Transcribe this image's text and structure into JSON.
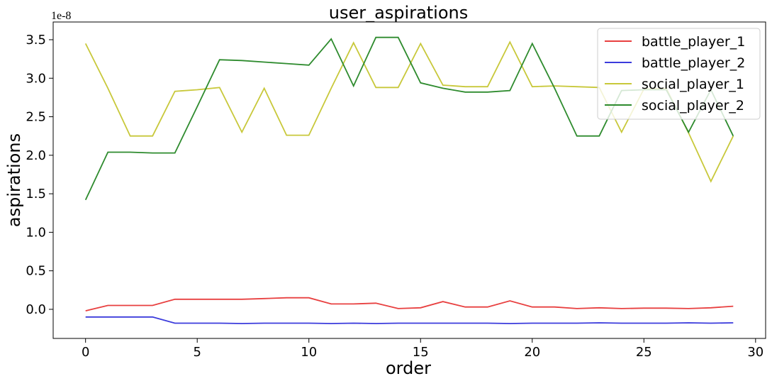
{
  "chart_data": {
    "type": "line",
    "title": "user_aspirations",
    "x_label": "order",
    "y_label": "aspirations",
    "y_offset_text": "1e-8",
    "x": [
      0,
      1,
      2,
      3,
      4,
      5,
      6,
      7,
      8,
      9,
      10,
      11,
      12,
      13,
      14,
      15,
      16,
      17,
      18,
      19,
      20,
      21,
      22,
      23,
      24,
      25,
      26,
      27,
      28,
      29
    ],
    "series": [
      {
        "name": "battle_player_1",
        "color": "#e84040",
        "values": [
          -0.02,
          0.05,
          0.05,
          0.05,
          0.13,
          0.13,
          0.13,
          0.13,
          0.14,
          0.15,
          0.15,
          0.07,
          0.07,
          0.08,
          0.01,
          0.02,
          0.1,
          0.03,
          0.03,
          0.11,
          0.03,
          0.03,
          0.01,
          0.02,
          0.01,
          0.015,
          0.015,
          0.01,
          0.02,
          0.04
        ]
      },
      {
        "name": "battle_player_2",
        "color": "#3b3bdc",
        "values": [
          -0.1,
          -0.1,
          -0.1,
          -0.1,
          -0.18,
          -0.18,
          -0.18,
          -0.185,
          -0.18,
          -0.18,
          -0.18,
          -0.185,
          -0.18,
          -0.185,
          -0.18,
          -0.18,
          -0.18,
          -0.18,
          -0.18,
          -0.185,
          -0.18,
          -0.18,
          -0.18,
          -0.175,
          -0.18,
          -0.18,
          -0.18,
          -0.175,
          -0.18,
          -0.175
        ]
      },
      {
        "name": "social_player_1",
        "color": "#c8c83a",
        "values": [
          3.45,
          2.87,
          2.25,
          2.25,
          2.83,
          2.85,
          2.88,
          2.3,
          2.87,
          2.26,
          2.26,
          2.87,
          3.46,
          2.88,
          2.88,
          3.45,
          2.91,
          2.89,
          2.89,
          3.47,
          2.89,
          2.9,
          2.89,
          2.88,
          2.3,
          2.86,
          2.87,
          2.29,
          1.66,
          2.25
        ]
      },
      {
        "name": "social_player_2",
        "color": "#2e8b2e",
        "values": [
          1.42,
          2.04,
          2.04,
          2.03,
          2.03,
          2.63,
          3.24,
          3.23,
          3.21,
          3.19,
          3.17,
          3.51,
          2.9,
          3.53,
          3.53,
          2.94,
          2.87,
          2.82,
          2.82,
          2.84,
          3.45,
          2.87,
          2.25,
          2.25,
          2.84,
          2.85,
          2.85,
          2.3,
          2.85,
          2.25
        ]
      }
    ],
    "xlim": [
      -1.45,
      30.45
    ],
    "ylim": [
      -0.378,
      3.73
    ],
    "xticks": [
      0,
      5,
      10,
      15,
      20,
      25,
      30
    ],
    "yticks": [
      {
        "value": 0,
        "label": "0.0"
      },
      0.5,
      {
        "value": 1,
        "label": "1.0"
      },
      1.5,
      {
        "value": 2,
        "label": "2.0"
      },
      2.5,
      {
        "value": 3,
        "label": "3.0"
      },
      3.5
    ],
    "legend": "upper right",
    "grid": false
  }
}
